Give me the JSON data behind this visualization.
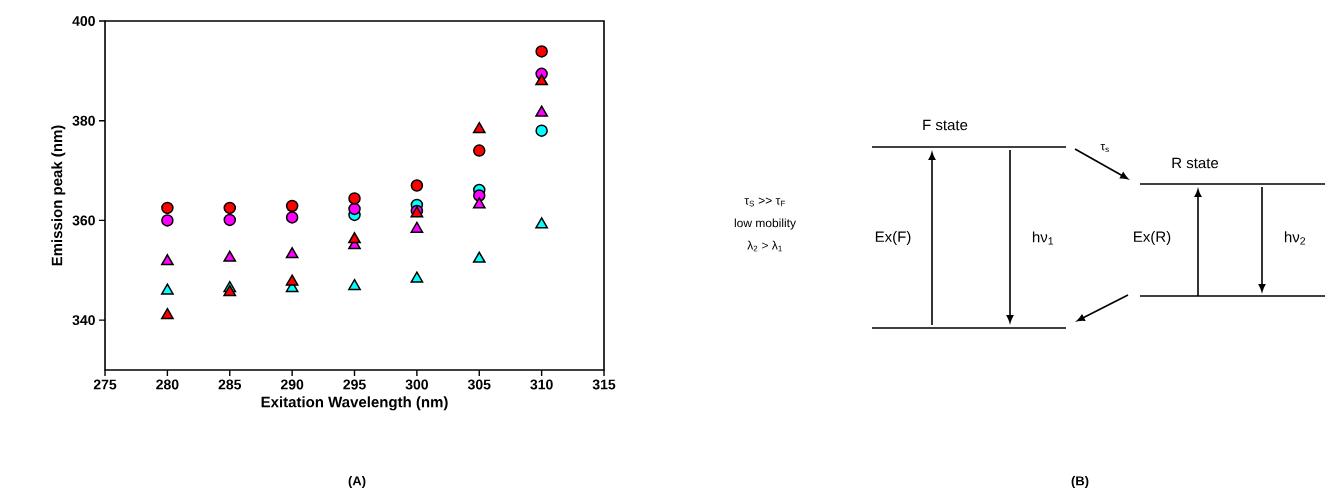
{
  "chart_data": [
    {
      "type": "scatter",
      "xlabel": "Exitation Wavelength (nm)",
      "ylabel": "Emission peak (nm)",
      "x": [
        280,
        285,
        290,
        295,
        300,
        305,
        310
      ],
      "xlim": [
        275,
        315
      ],
      "xticks": [
        275,
        280,
        285,
        290,
        295,
        300,
        305,
        310,
        315
      ],
      "ylim": [
        330,
        400
      ],
      "yticks": [
        340,
        360,
        380,
        400
      ],
      "series": [
        {
          "color": "#00ffff",
          "marker": "circle",
          "values": [
            null,
            null,
            null,
            361.1,
            363.1,
            366.1,
            378.0
          ]
        },
        {
          "color": "#ff00ff",
          "marker": "circle",
          "values": [
            360.0,
            360.1,
            360.6,
            362.3,
            361.9,
            365.0,
            389.4
          ]
        },
        {
          "color": "#ff0000",
          "marker": "circle",
          "values": [
            362.5,
            362.5,
            362.9,
            364.4,
            367.0,
            374.0,
            393.9
          ]
        },
        {
          "color": "#00ffff",
          "marker": "triangle",
          "values": [
            345.9,
            346.4,
            346.4,
            346.8,
            348.3,
            352.3,
            359.2
          ]
        },
        {
          "color": "#ff00ff",
          "marker": "triangle",
          "values": [
            351.8,
            352.5,
            353.2,
            355.0,
            358.3,
            363.2,
            381.6
          ]
        },
        {
          "color": "#ff0000",
          "marker": "triangle",
          "values": [
            341.0,
            345.6,
            347.7,
            356.2,
            361.4,
            378.3,
            387.9
          ]
        }
      ],
      "annotations": [
        "**(A)**"
      ]
    },
    {
      "type": "other",
      "annotations": [
        "τ$_{S}$ >> τ$_{F}$",
        "low mobility",
        "λ$_{2}$ > λ$_{1}$",
        "F state",
        "R state",
        "τ$_{s}$",
        "Ex(F)",
        "hν$_{1}$",
        "Ex(R)",
        "hν$_{2}$",
        "**(B)**"
      ]
    }
  ]
}
